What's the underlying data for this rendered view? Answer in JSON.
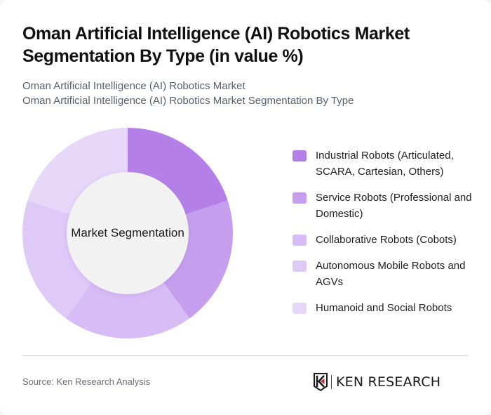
{
  "header": {
    "title": "Oman Artificial Intelligence (AI) Robotics Market Segmentation By Type (in value %)",
    "subtitle_line1": "Oman Artificial Intelligence (AI) Robotics Market",
    "subtitle_line2": "Oman Artificial Intelligence (AI) Robotics Market Segmentation By Type"
  },
  "chart": {
    "center_label": "Market Segmentation"
  },
  "legend": {
    "items": [
      {
        "label": "Industrial Robots (Articulated, SCARA, Cartesian, Others)",
        "color": "#b480e8"
      },
      {
        "label": "Service Robots (Professional and Domestic)",
        "color": "#c59eee"
      },
      {
        "label": "Collaborative Robots (Cobots)",
        "color": "#d7bcf5"
      },
      {
        "label": "Autonomous Mobile Robots and AGVs",
        "color": "#dfcaf7"
      },
      {
        "label": "Humanoid and Social Robots",
        "color": "#e7d8fa"
      }
    ]
  },
  "footer": {
    "source": "Source: Ken Research Analysis",
    "logo_text": "KEN RESEARCH"
  },
  "chart_data": {
    "type": "pie",
    "variant": "donut",
    "title": "Oman Artificial Intelligence (AI) Robotics Market Segmentation By Type (in value %)",
    "center_label": "Market Segmentation",
    "categories": [
      "Industrial Robots (Articulated, SCARA, Cartesian, Others)",
      "Service Robots (Professional and Domestic)",
      "Collaborative Robots (Cobots)",
      "Autonomous Mobile Robots and AGVs",
      "Humanoid and Social Robots"
    ],
    "values": [
      20,
      20,
      20,
      20,
      20
    ],
    "colors": [
      "#b480e8",
      "#c59eee",
      "#d7bcf5",
      "#dfcaf7",
      "#e7d8fa"
    ],
    "start_angle_deg": 0,
    "direction": "clockwise",
    "legend_position": "right",
    "data_labels": false
  }
}
